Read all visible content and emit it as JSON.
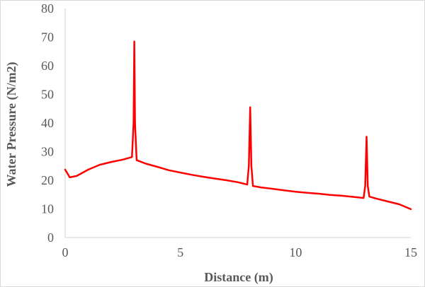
{
  "chart_data": {
    "type": "line",
    "title": "",
    "xlabel": "Distance (m)",
    "ylabel": "Water Pressure (N/m2)",
    "xlim": [
      0,
      15
    ],
    "ylim": [
      0,
      80
    ],
    "x_ticks": [
      "0",
      "5",
      "10",
      "15"
    ],
    "y_ticks": [
      "0",
      "10",
      "20",
      "30",
      "40",
      "50",
      "60",
      "70",
      "80"
    ],
    "grid": false,
    "legend": null,
    "series": [
      {
        "name": "Water Pressure",
        "color": "#ff0000",
        "x": [
          0,
          0.2,
          0.5,
          1.0,
          1.5,
          2.0,
          2.5,
          2.9,
          2.97,
          3.0,
          3.03,
          3.1,
          3.5,
          4.0,
          4.5,
          5.0,
          5.5,
          6.0,
          6.5,
          7.0,
          7.5,
          7.9,
          7.97,
          8.03,
          8.08,
          8.15,
          8.5,
          9.0,
          9.5,
          10.0,
          10.5,
          11.0,
          11.5,
          12.0,
          12.5,
          12.95,
          13.02,
          13.08,
          13.13,
          13.2,
          13.5,
          14.0,
          14.5,
          15.0
        ],
        "y": [
          23.7,
          21.0,
          21.5,
          23.7,
          25.4,
          26.4,
          27.2,
          28.1,
          40.0,
          68.5,
          40.0,
          27.0,
          25.8,
          24.7,
          23.5,
          22.7,
          21.9,
          21.2,
          20.6,
          20.0,
          19.3,
          18.5,
          25.0,
          45.5,
          25.0,
          18.0,
          17.5,
          17.0,
          16.5,
          16.0,
          15.6,
          15.3,
          14.9,
          14.6,
          14.2,
          13.8,
          18.0,
          35.2,
          18.0,
          14.3,
          13.6,
          12.6,
          11.6,
          9.9
        ]
      }
    ]
  }
}
